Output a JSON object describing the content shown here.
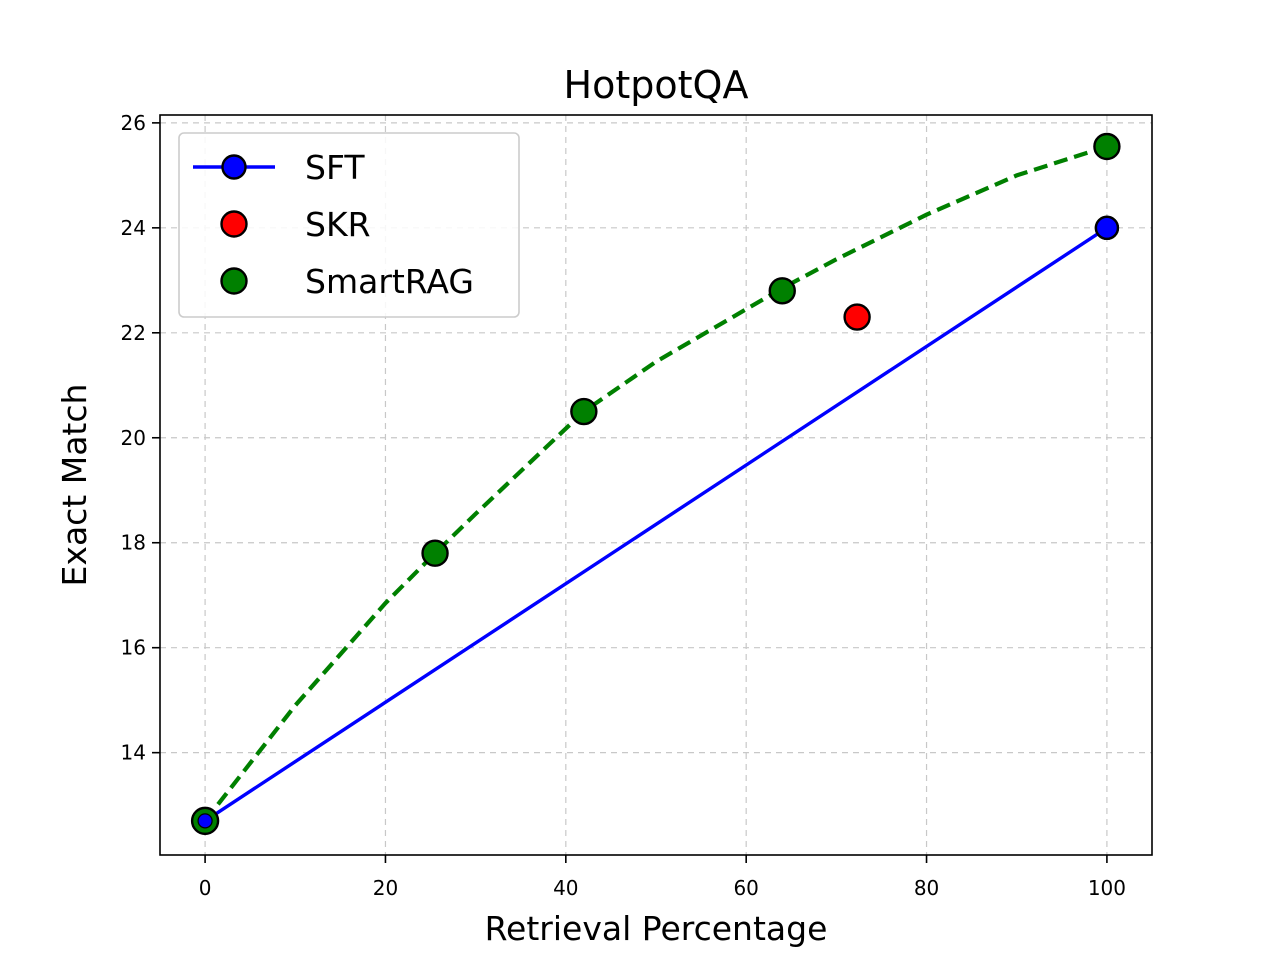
{
  "chart_data": {
    "type": "line",
    "title": "HotpotQA",
    "xlabel": "Retrieval Percentage",
    "ylabel": "Exact Match",
    "xlim": [
      -5,
      105
    ],
    "ylim": [
      12.05,
      26.15
    ],
    "xticks": [
      0,
      20,
      40,
      60,
      80,
      100
    ],
    "yticks": [
      14,
      16,
      18,
      20,
      22,
      24,
      26
    ],
    "grid": true,
    "legend_position": "top-left",
    "series": [
      {
        "name": "SFT",
        "kind": "line-with-endpoints",
        "color": "#0000ff",
        "line_style": "solid",
        "x": [
          0,
          100
        ],
        "y": [
          12.7,
          24.0
        ]
      },
      {
        "name": "SKR",
        "kind": "scatter",
        "color": "#ff0000",
        "x": [
          72.3
        ],
        "y": [
          22.3
        ]
      },
      {
        "name": "SmartRAG",
        "kind": "scatter",
        "color": "#008000",
        "x": [
          0,
          25.5,
          42,
          64,
          100
        ],
        "y": [
          12.7,
          17.8,
          20.5,
          22.8,
          25.55
        ]
      }
    ],
    "smartrag_fit": {
      "color": "#008000",
      "line_style": "dashed",
      "x": [
        0,
        10,
        20,
        25.5,
        30,
        42,
        50,
        64,
        70,
        80,
        90,
        100
      ],
      "y": [
        12.7,
        14.9,
        16.85,
        17.8,
        18.55,
        20.5,
        21.45,
        22.85,
        23.4,
        24.25,
        25.0,
        25.55
      ]
    }
  }
}
